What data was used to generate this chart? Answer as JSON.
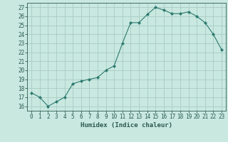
{
  "xlabel": "Humidex (Indice chaleur)",
  "ylabel": "",
  "x": [
    0,
    1,
    2,
    3,
    4,
    5,
    6,
    7,
    8,
    9,
    10,
    11,
    12,
    13,
    14,
    15,
    16,
    17,
    18,
    19,
    20,
    21,
    22,
    23
  ],
  "y": [
    17.5,
    17.0,
    16.0,
    16.5,
    17.0,
    18.5,
    18.8,
    19.0,
    19.2,
    20.0,
    20.5,
    23.0,
    25.3,
    25.3,
    26.2,
    27.0,
    26.7,
    26.3,
    26.3,
    26.5,
    26.0,
    25.3,
    24.0,
    22.3
  ],
  "line_color": "#2d7a6e",
  "marker": "D",
  "marker_size": 2,
  "background_color": "#c8e8e0",
  "grid_color": "#a8ccc4",
  "tick_color": "#2d5a50",
  "ylim": [
    15.5,
    27.5
  ],
  "yticks": [
    16,
    17,
    18,
    19,
    20,
    21,
    22,
    23,
    24,
    25,
    26,
    27
  ],
  "xticks": [
    0,
    1,
    2,
    3,
    4,
    5,
    6,
    7,
    8,
    9,
    10,
    11,
    12,
    13,
    14,
    15,
    16,
    17,
    18,
    19,
    20,
    21,
    22,
    23
  ],
  "xlim": [
    -0.5,
    23.5
  ],
  "label_fontsize": 6.5,
  "tick_fontsize": 5.5
}
